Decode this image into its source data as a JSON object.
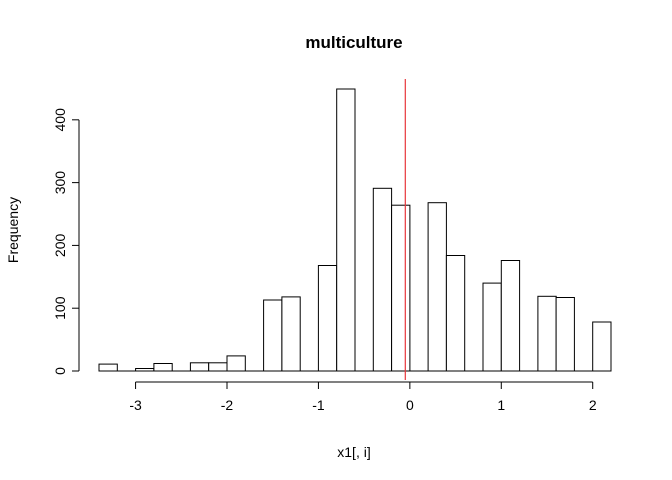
{
  "chart_data": {
    "type": "bar",
    "title": "multiculture",
    "xlabel": "x1[, i]",
    "ylabel": "Frequency",
    "bin_width": 0.2,
    "bins": [
      {
        "x0": -3.4,
        "x1": -3.2,
        "value": 11
      },
      {
        "x0": -3.2,
        "x1": -3.0,
        "value": 0
      },
      {
        "x0": -3.0,
        "x1": -2.8,
        "value": 4
      },
      {
        "x0": -2.8,
        "x1": -2.6,
        "value": 12
      },
      {
        "x0": -2.6,
        "x1": -2.4,
        "value": 0
      },
      {
        "x0": -2.4,
        "x1": -2.2,
        "value": 13
      },
      {
        "x0": -2.2,
        "x1": -2.0,
        "value": 13
      },
      {
        "x0": -2.0,
        "x1": -1.8,
        "value": 24
      },
      {
        "x0": -1.8,
        "x1": -1.6,
        "value": 0
      },
      {
        "x0": -1.6,
        "x1": -1.4,
        "value": 113
      },
      {
        "x0": -1.4,
        "x1": -1.2,
        "value": 118
      },
      {
        "x0": -1.2,
        "x1": -1.0,
        "value": 0
      },
      {
        "x0": -1.0,
        "x1": -0.8,
        "value": 168
      },
      {
        "x0": -0.8,
        "x1": -0.6,
        "value": 449
      },
      {
        "x0": -0.6,
        "x1": -0.4,
        "value": 0
      },
      {
        "x0": -0.4,
        "x1": -0.2,
        "value": 291
      },
      {
        "x0": -0.2,
        "x1": 0.0,
        "value": 264
      },
      {
        "x0": 0.0,
        "x1": 0.2,
        "value": 0
      },
      {
        "x0": 0.2,
        "x1": 0.4,
        "value": 268
      },
      {
        "x0": 0.4,
        "x1": 0.6,
        "value": 184
      },
      {
        "x0": 0.6,
        "x1": 0.8,
        "value": 0
      },
      {
        "x0": 0.8,
        "x1": 1.0,
        "value": 140
      },
      {
        "x0": 1.0,
        "x1": 1.2,
        "value": 176
      },
      {
        "x0": 1.2,
        "x1": 1.4,
        "value": 0
      },
      {
        "x0": 1.4,
        "x1": 1.6,
        "value": 119
      },
      {
        "x0": 1.6,
        "x1": 1.8,
        "value": 117
      },
      {
        "x0": 1.8,
        "x1": 2.0,
        "value": 0
      },
      {
        "x0": 2.0,
        "x1": 2.2,
        "value": 78
      }
    ],
    "xlim": [
      -3.4,
      2.2
    ],
    "ylim": [
      0,
      465
    ],
    "x_ticks": [
      -3,
      -2,
      -1,
      0,
      1,
      2
    ],
    "x_tick_labels": [
      "-3",
      "-2",
      "-1",
      "0",
      "1",
      "2"
    ],
    "y_ticks": [
      0,
      100,
      200,
      300,
      400
    ],
    "y_tick_labels": [
      "0",
      "100",
      "200",
      "300",
      "400"
    ],
    "vline": {
      "x": -0.05,
      "color": "#e8353a"
    },
    "grid": false,
    "legend": "none"
  }
}
